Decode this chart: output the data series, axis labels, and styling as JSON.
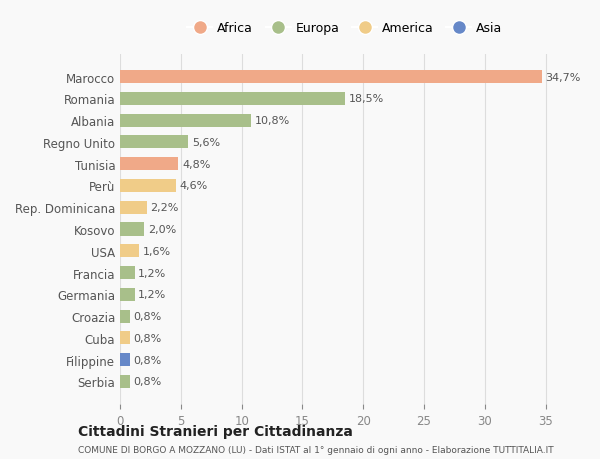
{
  "countries": [
    "Marocco",
    "Romania",
    "Albania",
    "Regno Unito",
    "Tunisia",
    "Perù",
    "Rep. Dominicana",
    "Kosovo",
    "USA",
    "Francia",
    "Germania",
    "Croazia",
    "Cuba",
    "Filippine",
    "Serbia"
  ],
  "values": [
    34.7,
    18.5,
    10.8,
    5.6,
    4.8,
    4.6,
    2.2,
    2.0,
    1.6,
    1.2,
    1.2,
    0.8,
    0.8,
    0.8,
    0.8
  ],
  "labels": [
    "34,7%",
    "18,5%",
    "10,8%",
    "5,6%",
    "4,8%",
    "4,6%",
    "2,2%",
    "2,0%",
    "1,6%",
    "1,2%",
    "1,2%",
    "0,8%",
    "0,8%",
    "0,8%",
    "0,8%"
  ],
  "continents": [
    "Africa",
    "Europa",
    "Europa",
    "Europa",
    "Africa",
    "America",
    "America",
    "Europa",
    "America",
    "Europa",
    "Europa",
    "Europa",
    "America",
    "Asia",
    "Europa"
  ],
  "continent_colors": {
    "Africa": "#F0A988",
    "Europa": "#A8BF8A",
    "America": "#F0CC88",
    "Asia": "#6688C8"
  },
  "legend_order": [
    "Africa",
    "Europa",
    "America",
    "Asia"
  ],
  "title": "Cittadini Stranieri per Cittadinanza",
  "subtitle": "COMUNE DI BORGO A MOZZANO (LU) - Dati ISTAT al 1° gennaio di ogni anno - Elaborazione TUTTITALIA.IT",
  "xlim": [
    0,
    37
  ],
  "xticks": [
    0,
    5,
    10,
    15,
    20,
    25,
    30,
    35
  ],
  "bg_color": "#f9f9f9",
  "grid_color": "#dddddd"
}
